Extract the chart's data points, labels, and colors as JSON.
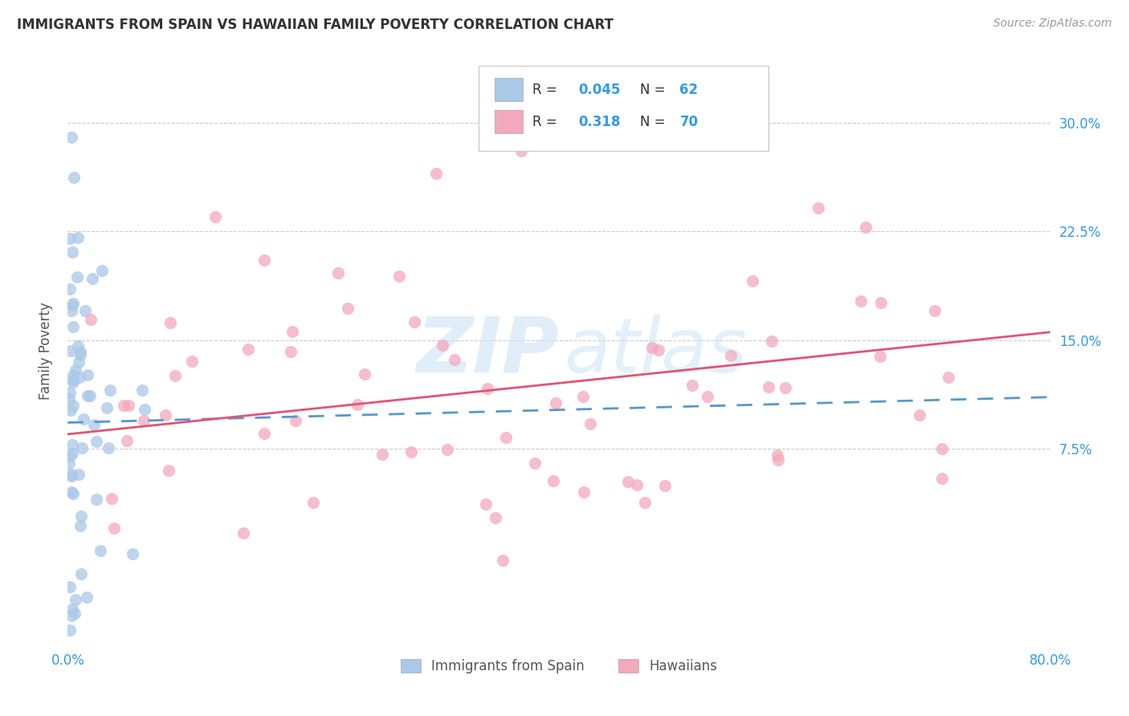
{
  "title": "IMMIGRANTS FROM SPAIN VS HAWAIIAN FAMILY POVERTY CORRELATION CHART",
  "source": "Source: ZipAtlas.com",
  "ylabel": "Family Poverty",
  "ytick_labels": [
    "7.5%",
    "15.0%",
    "22.5%",
    "30.0%"
  ],
  "ytick_values": [
    0.075,
    0.15,
    0.225,
    0.3
  ],
  "xlim": [
    0.0,
    0.8
  ],
  "ylim": [
    -0.06,
    0.345
  ],
  "color_spain": "#aac8e8",
  "color_hawaii": "#f4a8bc",
  "trendline_spain_color": "#5599cc",
  "trendline_hawaii_color": "#e05575",
  "watermark_zip": "ZIP",
  "watermark_atlas": "atlas",
  "watermark_color": "#c8dff0",
  "spain_intercept": 0.093,
  "spain_slope": 0.022,
  "hawaii_intercept": 0.085,
  "hawaii_slope": 0.088
}
